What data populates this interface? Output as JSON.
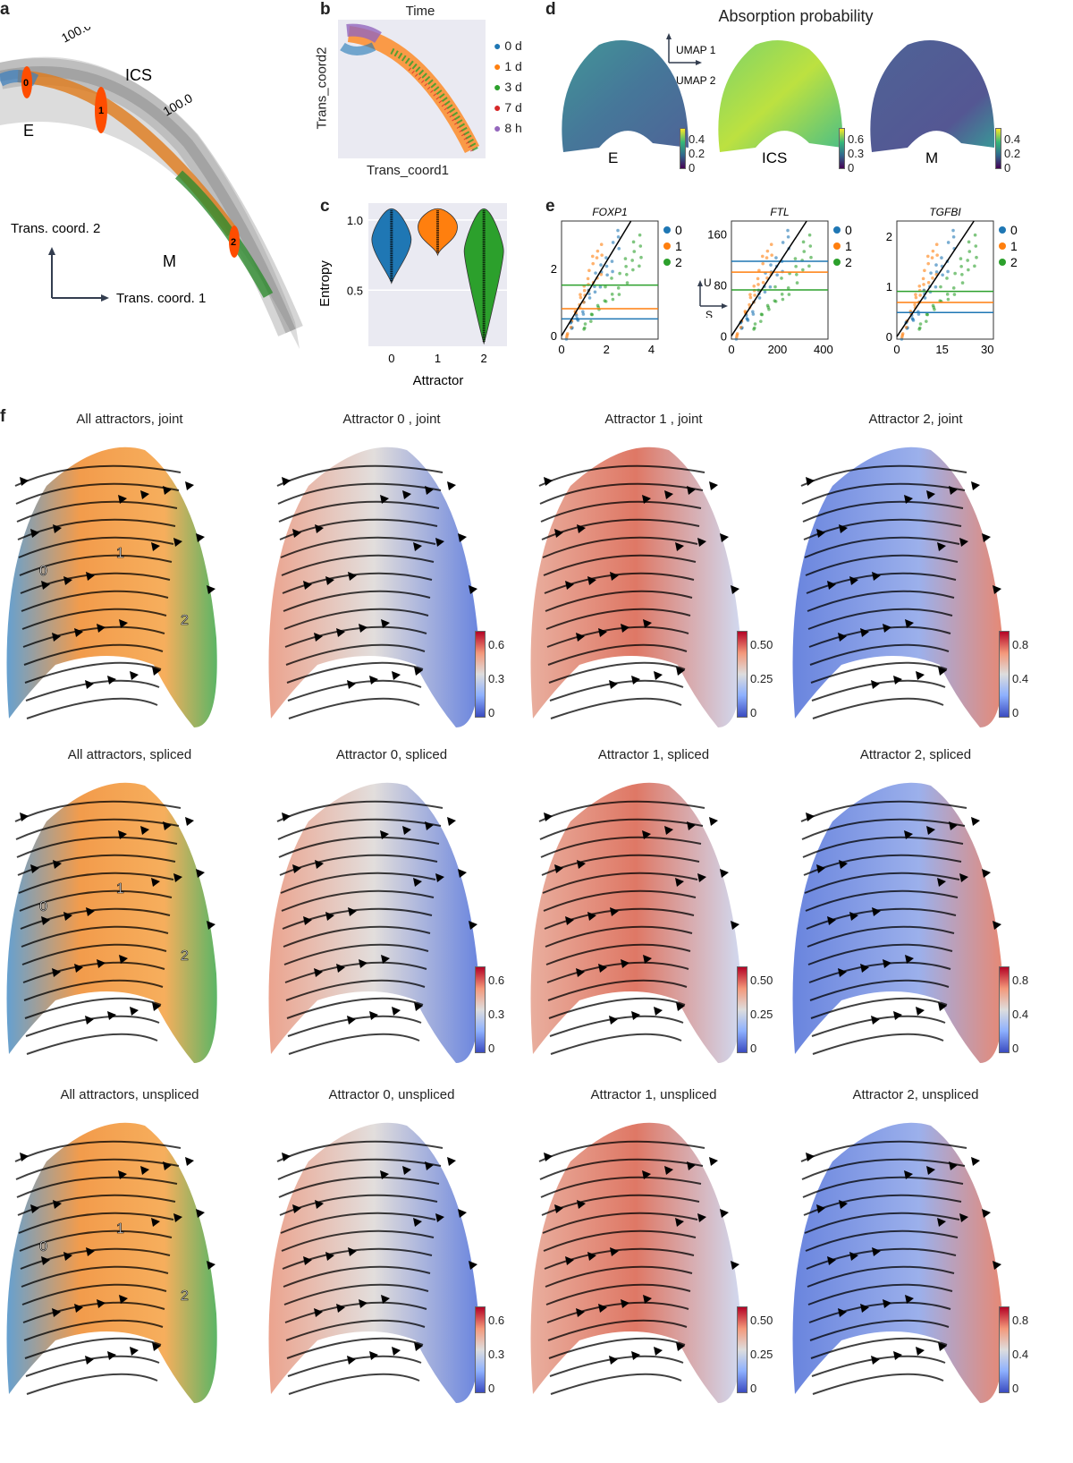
{
  "panels": {
    "a": {
      "label": "a",
      "contour_labels": [
        "100.0",
        "100.0"
      ],
      "cell_labels": [
        "ICS",
        "E",
        "M"
      ],
      "attractor_marks": [
        "0",
        "1",
        "2"
      ],
      "axis_y": "Trans. coord. 2",
      "axis_x": "Trans. coord. 1"
    },
    "b": {
      "label": "b",
      "title": "Time",
      "xlabel": "Trans_coord1",
      "ylabel": "Trans_coord2",
      "legend": [
        {
          "name": "0 d",
          "color": "#1f77b4"
        },
        {
          "name": "1 d",
          "color": "#ff7f0e"
        },
        {
          "name": "3 d",
          "color": "#2ca02c"
        },
        {
          "name": "7 d",
          "color": "#d62728"
        },
        {
          "name": "8 h",
          "color": "#9467bd"
        }
      ]
    },
    "c": {
      "label": "c"
    },
    "d": {
      "label": "d",
      "title": "Absorption probability",
      "axis_up": "UMAP 1",
      "axis_right": "UMAP 2",
      "maps": [
        {
          "name": "E",
          "ticks": [
            "0.4",
            "0.2",
            "0"
          ]
        },
        {
          "name": "ICS",
          "ticks": [
            "0.6",
            "0.3",
            "0"
          ]
        },
        {
          "name": "M",
          "ticks": [
            "0.4",
            "0.2",
            "0"
          ]
        }
      ]
    },
    "e": {
      "label": "e",
      "legend": [
        {
          "name": "0",
          "color": "#1f77b4"
        },
        {
          "name": "1",
          "color": "#ff7f0e"
        },
        {
          "name": "2",
          "color": "#2ca02c"
        }
      ],
      "axis_u": "U",
      "axis_s": "S"
    },
    "f": {
      "label": "f",
      "colorbar_ticks": [
        [
          "0.6",
          "0.3",
          "0"
        ],
        [
          "0.50",
          "0.25",
          "0"
        ],
        [
          "0.8",
          "0.4",
          "0"
        ]
      ],
      "cluster_marks": [
        "0",
        "1",
        "2"
      ],
      "rows": [
        [
          "All attractors, joint",
          "Attractor 0 , joint",
          "Attractor 1 , joint",
          "Attractor 2, joint"
        ],
        [
          "All attractors, spliced",
          "Attractor 0, spliced",
          "Attractor 1, spliced",
          "Attractor 2, spliced"
        ],
        [
          "All attractors, unspliced",
          "Attractor 0, unspliced",
          "Attractor 1, unspliced",
          "Attractor 2, unspliced"
        ]
      ]
    }
  },
  "chart_data": [
    {
      "panel": "c",
      "type": "violin",
      "categories": [
        "0",
        "1",
        "2"
      ],
      "colors": [
        "#1f77b4",
        "#ff7f0e",
        "#2ca02c"
      ],
      "medians": [
        0.86,
        0.95,
        0.78
      ],
      "ranges": [
        [
          0.55,
          1.08
        ],
        [
          0.75,
          1.08
        ],
        [
          0.12,
          1.08
        ]
      ],
      "xlabel": "Attractor",
      "ylabel": "Entropy",
      "yticks": [
        "1.0",
        "0.5"
      ],
      "ylim": [
        0.1,
        1.12
      ]
    },
    {
      "panel": "e",
      "type": "scatter",
      "title": "FOXP1",
      "xticks": [
        "0",
        "2",
        "4"
      ],
      "yticks": [
        "0",
        "2"
      ],
      "xlim": [
        0,
        4.3
      ],
      "ylim": [
        -0.1,
        3.4
      ],
      "hlines": [
        0.5,
        0.8,
        1.5
      ],
      "slope": 1.1
    },
    {
      "panel": "e",
      "type": "scatter",
      "title": "FTL",
      "xticks": [
        "0",
        "200",
        "400"
      ],
      "yticks": [
        "0",
        "80",
        "160"
      ],
      "xlim": [
        0,
        420
      ],
      "ylim": [
        -5,
        180
      ],
      "hlines": [
        117,
        100,
        72
      ],
      "slope": 0.55
    },
    {
      "panel": "e",
      "type": "scatter",
      "title": "TGFBI",
      "xticks": [
        "0",
        "15",
        "30"
      ],
      "yticks": [
        "0",
        "1",
        "2"
      ],
      "xlim": [
        0,
        32
      ],
      "ylim": [
        -0.05,
        2.3
      ],
      "hlines": [
        0.48,
        0.68,
        0.9
      ],
      "slope": 0.09
    }
  ]
}
